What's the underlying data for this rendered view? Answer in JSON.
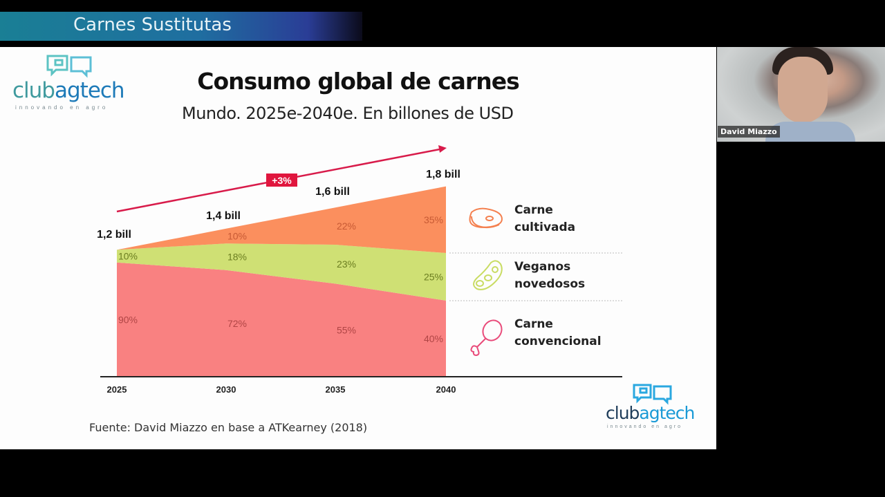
{
  "banner": {
    "title": "Carnes Sustitutas"
  },
  "logo": {
    "club": "club",
    "agtech": "agtech",
    "tagline": "innovando en agro"
  },
  "slide": {
    "title": "Consumo global de carnes",
    "subtitle": "Mundo. 2025e-2040e. En billones de USD",
    "source": "Fuente: David Miazzo en base a ATKearney (2018)"
  },
  "growth_badge": "+3%",
  "legend": [
    {
      "icon": "steak-icon",
      "line1": "Carne",
      "line2": "cultivada",
      "color": "#fb8f5e"
    },
    {
      "icon": "soybean-icon",
      "line1": "Veganos",
      "line2": "novedosos",
      "color": "#cfe074"
    },
    {
      "icon": "chicken-leg-icon",
      "line1": "Carne",
      "line2": "convencional",
      "color": "#f98181"
    }
  ],
  "webcam": {
    "name": "David Miazzo"
  },
  "chart_data": {
    "type": "area",
    "title": "Consumo global de carnes",
    "subtitle": "Mundo. 2025e-2040e. En billones de USD",
    "x": [
      "2025",
      "2030",
      "2035",
      "2040"
    ],
    "totals": [
      1.2,
      1.4,
      1.6,
      1.8
    ],
    "total_labels": [
      "1,2 bill",
      "1,4 bill",
      "1,6 bill",
      "1,8 bill"
    ],
    "series": [
      {
        "name": "Carne convencional",
        "values_pct": [
          90,
          72,
          55,
          40
        ],
        "labels": [
          "90%",
          "72%",
          "55%",
          "40%"
        ],
        "color": "#f98181",
        "label_color": "#b04545"
      },
      {
        "name": "Veganos novedosos",
        "values_pct": [
          10,
          18,
          23,
          25
        ],
        "labels": [
          "10%",
          "18%",
          "23%",
          "25%"
        ],
        "color": "#cfe074",
        "label_color": "#6b7d20"
      },
      {
        "name": "Carne cultivada",
        "values_pct": [
          0,
          10,
          22,
          35
        ],
        "labels": [
          "",
          "10%",
          "22%",
          "35%"
        ],
        "color": "#fb8f5e",
        "label_color": "#c75a34"
      }
    ],
    "annotation": "+3%",
    "xlabel": "",
    "ylabel": "",
    "ylim": [
      0,
      1.8
    ],
    "grid": false,
    "legend_position": "right"
  }
}
